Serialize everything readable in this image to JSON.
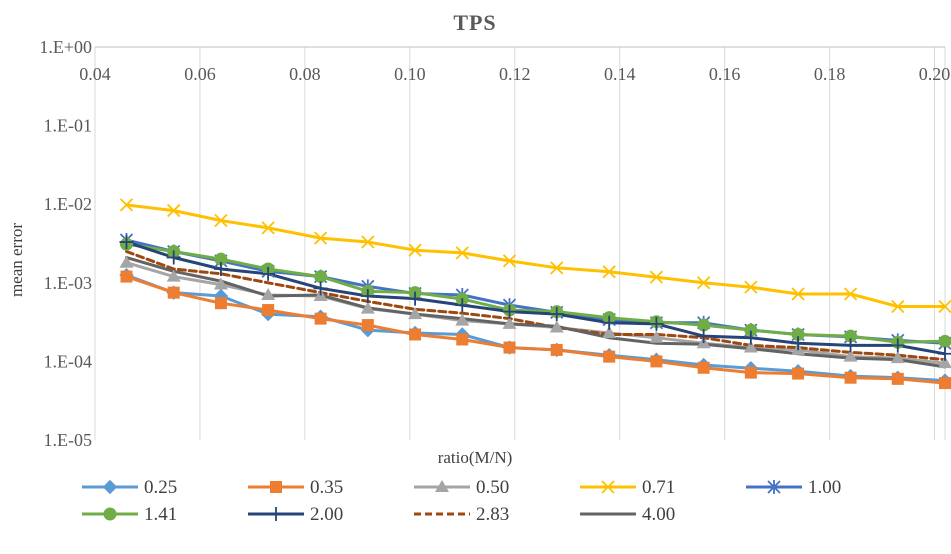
{
  "chart_data": {
    "type": "line",
    "title": "TPS",
    "xlabel": "ratio(M/N)",
    "ylabel": "mean error",
    "y_scale": "log",
    "xlim": [
      0.04,
      0.202
    ],
    "ylim": [
      1e-05,
      1
    ],
    "x_ticks": [
      0.04,
      0.06,
      0.08,
      0.1,
      0.12,
      0.14,
      0.16,
      0.18,
      0.2
    ],
    "x_tick_labels": [
      "0.04",
      "0.06",
      "0.08",
      "0.10",
      "0.12",
      "0.14",
      "0.16",
      "0.18",
      "0.20"
    ],
    "y_ticks": [
      1,
      0.1,
      0.01,
      0.001,
      0.0001,
      1e-05
    ],
    "y_tick_labels": [
      "1.E+00",
      "1.E-01",
      "1.E-02",
      "1.E-03",
      "1.E-04",
      "1.E-05"
    ],
    "grid": "vertical",
    "x_axis_position": "top",
    "legend_position": "bottom",
    "x": [
      0.046,
      0.055,
      0.064,
      0.073,
      0.083,
      0.092,
      0.101,
      0.11,
      0.119,
      0.128,
      0.138,
      0.147,
      0.156,
      0.165,
      0.174,
      0.184,
      0.193,
      0.202
    ],
    "series": [
      {
        "name": "0.25",
        "color": "#5B9BD5",
        "marker": "diamond",
        "dash": "solid",
        "values": [
          0.00125,
          0.00075,
          0.00068,
          0.0004,
          0.00037,
          0.00025,
          0.00023,
          0.00022,
          0.00015,
          0.00014,
          0.00012,
          0.000105,
          9e-05,
          8.2e-05,
          7.5e-05,
          6.5e-05,
          6.2e-05,
          5.7e-05
        ]
      },
      {
        "name": "0.35",
        "color": "#ED7D31",
        "marker": "square",
        "dash": "solid",
        "values": [
          0.0012,
          0.00075,
          0.00055,
          0.00045,
          0.00035,
          0.00029,
          0.00022,
          0.00019,
          0.00015,
          0.00014,
          0.000115,
          0.0001,
          8.3e-05,
          7.2e-05,
          7e-05,
          6.2e-05,
          6e-05,
          5.3e-05
        ]
      },
      {
        "name": "0.50",
        "color": "#A5A5A5",
        "marker": "triangle",
        "dash": "solid",
        "values": [
          0.0018,
          0.0012,
          0.00095,
          0.0007,
          0.00068,
          0.00047,
          0.0004,
          0.00033,
          0.0003,
          0.00027,
          0.00023,
          0.0002,
          0.00017,
          0.00015,
          0.00014,
          0.000115,
          0.00011,
          9.5e-05
        ]
      },
      {
        "name": "0.71",
        "color": "#FFC000",
        "marker": "x",
        "dash": "solid",
        "values": [
          0.0098,
          0.0083,
          0.0062,
          0.005,
          0.0037,
          0.0033,
          0.0026,
          0.0024,
          0.0019,
          0.00155,
          0.00138,
          0.00118,
          0.001,
          0.00088,
          0.00072,
          0.00072,
          0.0005,
          0.0005
        ]
      },
      {
        "name": "1.00",
        "color": "#4472C4",
        "marker": "star",
        "dash": "solid",
        "values": [
          0.0035,
          0.0025,
          0.0019,
          0.0014,
          0.0012,
          0.0009,
          0.00073,
          0.0007,
          0.00052,
          0.00042,
          0.00034,
          0.00031,
          0.00031,
          0.00025,
          0.00022,
          0.000205,
          0.000185,
          0.00017
        ]
      },
      {
        "name": "1.41",
        "color": "#70AD47",
        "marker": "circle",
        "dash": "solid",
        "values": [
          0.0031,
          0.0025,
          0.002,
          0.0015,
          0.0012,
          0.00078,
          0.00075,
          0.00062,
          0.00045,
          0.00043,
          0.00036,
          0.00032,
          0.00029,
          0.00025,
          0.00022,
          0.00021,
          0.000175,
          0.00018
        ]
      },
      {
        "name": "2.00",
        "color": "#264478",
        "marker": "plus",
        "dash": "solid",
        "values": [
          0.0033,
          0.0021,
          0.0015,
          0.0013,
          0.00085,
          0.00068,
          0.00063,
          0.00052,
          0.00043,
          0.0004,
          0.00031,
          0.0003,
          0.00021,
          0.0002,
          0.00017,
          0.00016,
          0.00016,
          0.000125
        ]
      },
      {
        "name": "2.83",
        "color": "#9E480E",
        "marker": "none",
        "dash": "dashed",
        "values": [
          0.0025,
          0.0015,
          0.0013,
          0.001,
          0.00075,
          0.00058,
          0.00046,
          0.00041,
          0.00035,
          0.00027,
          0.00022,
          0.00022,
          0.0002,
          0.00016,
          0.00015,
          0.00013,
          0.00012,
          0.000105
        ]
      },
      {
        "name": "4.00",
        "color": "#636363",
        "marker": "none",
        "dash": "solid",
        "values": [
          0.0021,
          0.0014,
          0.00105,
          0.00068,
          0.0007,
          0.00048,
          0.0004,
          0.00035,
          0.0003,
          0.00028,
          0.0002,
          0.00017,
          0.000165,
          0.000145,
          0.000125,
          0.00011,
          0.000105,
          8.5e-05
        ]
      }
    ]
  }
}
